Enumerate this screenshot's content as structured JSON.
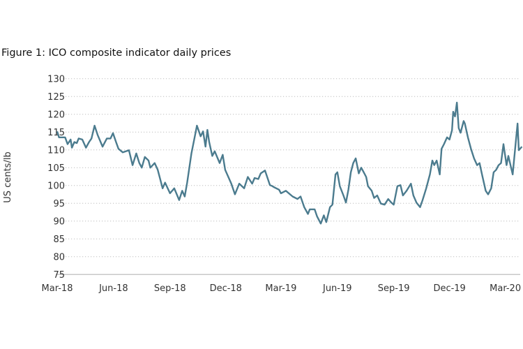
{
  "chart_data": {
    "type": "line",
    "title": "Figure 1: ICO composite indicator daily prices",
    "xlabel": "",
    "ylabel": "US cents/lb",
    "ylim": [
      75,
      130
    ],
    "yticks": [
      "75",
      "80",
      "85",
      "90",
      "95",
      "100",
      "105",
      "110",
      "115",
      "120",
      "125",
      "130"
    ],
    "xticks": [
      {
        "label": "Mar-18",
        "date": "2018-03-01"
      },
      {
        "label": "Jun-18",
        "date": "2018-06-01"
      },
      {
        "label": "Sep-18",
        "date": "2018-09-01"
      },
      {
        "label": "Dec-18",
        "date": "2018-12-01"
      },
      {
        "label": "Mar-19",
        "date": "2019-03-01"
      },
      {
        "label": "Jun-19",
        "date": "2019-06-01"
      },
      {
        "label": "Sep-19",
        "date": "2019-09-01"
      },
      {
        "label": "Dec-19",
        "date": "2019-12-01"
      },
      {
        "label": "Mar-20",
        "date": "2020-03-01"
      }
    ],
    "grid": "horizontal dotted",
    "line_color": "#4b7b8e",
    "series": [
      {
        "points": [
          [
            "2018-03-01",
            115.2
          ],
          [
            "2018-03-04",
            113.5
          ],
          [
            "2018-03-14",
            113.5
          ],
          [
            "2018-03-18",
            111.6
          ],
          [
            "2018-03-23",
            112.9
          ],
          [
            "2018-03-25",
            110.6
          ],
          [
            "2018-03-29",
            112.2
          ],
          [
            "2018-04-02",
            111.9
          ],
          [
            "2018-04-05",
            113.2
          ],
          [
            "2018-04-11",
            112.9
          ],
          [
            "2018-04-17",
            110.6
          ],
          [
            "2018-04-22",
            112.2
          ],
          [
            "2018-04-26",
            113.2
          ],
          [
            "2018-05-01",
            116.8
          ],
          [
            "2018-05-06",
            114.2
          ],
          [
            "2018-05-14",
            110.9
          ],
          [
            "2018-05-21",
            113.2
          ],
          [
            "2018-05-27",
            113.2
          ],
          [
            "2018-05-31",
            114.7
          ],
          [
            "2018-06-05",
            112.2
          ],
          [
            "2018-06-09",
            110.3
          ],
          [
            "2018-06-16",
            109.3
          ],
          [
            "2018-06-26",
            109.9
          ],
          [
            "2018-07-02",
            105.7
          ],
          [
            "2018-07-08",
            109.0
          ],
          [
            "2018-07-13",
            106.3
          ],
          [
            "2018-07-17",
            105.0
          ],
          [
            "2018-07-22",
            108.0
          ],
          [
            "2018-07-28",
            107.0
          ],
          [
            "2018-07-31",
            105.0
          ],
          [
            "2018-08-07",
            106.3
          ],
          [
            "2018-08-12",
            104.4
          ],
          [
            "2018-08-20",
            99.2
          ],
          [
            "2018-08-24",
            100.8
          ],
          [
            "2018-09-01",
            97.8
          ],
          [
            "2018-09-08",
            99.2
          ],
          [
            "2018-09-16",
            95.9
          ],
          [
            "2018-09-21",
            98.5
          ],
          [
            "2018-09-25",
            96.9
          ],
          [
            "2018-09-29",
            100.8
          ],
          [
            "2018-10-06",
            109.0
          ],
          [
            "2018-10-12",
            114.2
          ],
          [
            "2018-10-15",
            116.8
          ],
          [
            "2018-10-21",
            113.8
          ],
          [
            "2018-10-25",
            115.2
          ],
          [
            "2018-10-29",
            110.9
          ],
          [
            "2018-11-01",
            115.6
          ],
          [
            "2018-11-04",
            112.2
          ],
          [
            "2018-11-09",
            108.3
          ],
          [
            "2018-11-13",
            109.6
          ],
          [
            "2018-11-21",
            106.3
          ],
          [
            "2018-11-26",
            108.6
          ],
          [
            "2018-11-30",
            104.4
          ],
          [
            "2018-12-10",
            100.5
          ],
          [
            "2018-12-16",
            97.5
          ],
          [
            "2018-12-23",
            100.5
          ],
          [
            "2018-12-31",
            99.2
          ],
          [
            "2019-01-06",
            102.4
          ],
          [
            "2019-01-13",
            100.5
          ],
          [
            "2019-01-17",
            102.1
          ],
          [
            "2019-01-23",
            101.8
          ],
          [
            "2019-01-27",
            103.4
          ],
          [
            "2019-02-03",
            104.2
          ],
          [
            "2019-02-11",
            100.1
          ],
          [
            "2019-02-15",
            99.8
          ],
          [
            "2019-02-18",
            99.5
          ],
          [
            "2019-02-26",
            98.8
          ],
          [
            "2019-03-01",
            97.8
          ],
          [
            "2019-03-09",
            98.5
          ],
          [
            "2019-03-20",
            96.9
          ],
          [
            "2019-03-28",
            96.2
          ],
          [
            "2019-04-02",
            96.9
          ],
          [
            "2019-04-08",
            93.9
          ],
          [
            "2019-04-14",
            92.0
          ],
          [
            "2019-04-17",
            93.3
          ],
          [
            "2019-04-25",
            93.3
          ],
          [
            "2019-04-29",
            91.3
          ],
          [
            "2019-05-05",
            89.3
          ],
          [
            "2019-05-10",
            91.6
          ],
          [
            "2019-05-14",
            89.7
          ],
          [
            "2019-05-20",
            93.9
          ],
          [
            "2019-05-24",
            94.6
          ],
          [
            "2019-05-29",
            103.1
          ],
          [
            "2019-06-01",
            103.7
          ],
          [
            "2019-06-05",
            99.8
          ],
          [
            "2019-06-11",
            97.2
          ],
          [
            "2019-06-15",
            95.2
          ],
          [
            "2019-06-19",
            98.8
          ],
          [
            "2019-06-23",
            103.7
          ],
          [
            "2019-06-27",
            106.3
          ],
          [
            "2019-07-01",
            107.6
          ],
          [
            "2019-07-06",
            103.4
          ],
          [
            "2019-07-10",
            105.0
          ],
          [
            "2019-07-14",
            103.7
          ],
          [
            "2019-07-18",
            102.4
          ],
          [
            "2019-07-21",
            99.8
          ],
          [
            "2019-07-27",
            98.5
          ],
          [
            "2019-07-31",
            96.5
          ],
          [
            "2019-08-05",
            97.2
          ],
          [
            "2019-08-11",
            94.9
          ],
          [
            "2019-08-17",
            94.6
          ],
          [
            "2019-08-23",
            96.2
          ],
          [
            "2019-08-28",
            95.2
          ],
          [
            "2019-09-01",
            94.6
          ],
          [
            "2019-09-07",
            99.8
          ],
          [
            "2019-09-12",
            100.1
          ],
          [
            "2019-09-16",
            97.2
          ],
          [
            "2019-09-22",
            98.5
          ],
          [
            "2019-09-29",
            100.5
          ],
          [
            "2019-10-03",
            97.2
          ],
          [
            "2019-10-08",
            95.2
          ],
          [
            "2019-10-14",
            93.9
          ],
          [
            "2019-10-18",
            95.9
          ],
          [
            "2019-10-24",
            99.2
          ],
          [
            "2019-10-30",
            103.1
          ],
          [
            "2019-11-03",
            107.0
          ],
          [
            "2019-11-06",
            105.7
          ],
          [
            "2019-11-10",
            107.0
          ],
          [
            "2019-11-15",
            103.1
          ],
          [
            "2019-11-18",
            110.3
          ],
          [
            "2019-11-22",
            111.6
          ],
          [
            "2019-11-27",
            113.5
          ],
          [
            "2019-12-01",
            112.9
          ],
          [
            "2019-12-05",
            115.5
          ],
          [
            "2019-12-07",
            120.7
          ],
          [
            "2019-12-10",
            119.4
          ],
          [
            "2019-12-13",
            123.3
          ],
          [
            "2019-12-16",
            116.1
          ],
          [
            "2019-12-19",
            114.8
          ],
          [
            "2019-12-21",
            116.1
          ],
          [
            "2019-12-24",
            118.1
          ],
          [
            "2019-12-26",
            117.4
          ],
          [
            "2019-12-31",
            113.5
          ],
          [
            "2020-01-05",
            110.3
          ],
          [
            "2020-01-10",
            107.6
          ],
          [
            "2020-01-15",
            105.7
          ],
          [
            "2020-01-19",
            106.3
          ],
          [
            "2020-01-23",
            103.1
          ],
          [
            "2020-01-29",
            98.5
          ],
          [
            "2020-02-02",
            97.5
          ],
          [
            "2020-02-07",
            99.2
          ],
          [
            "2020-02-11",
            103.7
          ],
          [
            "2020-02-15",
            104.4
          ],
          [
            "2020-02-19",
            105.7
          ],
          [
            "2020-02-23",
            106.3
          ],
          [
            "2020-02-27",
            111.6
          ],
          [
            "2020-03-03",
            105.7
          ],
          [
            "2020-03-06",
            108.3
          ],
          [
            "2020-03-13",
            103.1
          ],
          [
            "2020-03-17",
            110.3
          ],
          [
            "2020-03-21",
            117.4
          ],
          [
            "2020-03-23",
            109.9
          ],
          [
            "2020-03-28",
            110.9
          ]
        ]
      }
    ]
  }
}
